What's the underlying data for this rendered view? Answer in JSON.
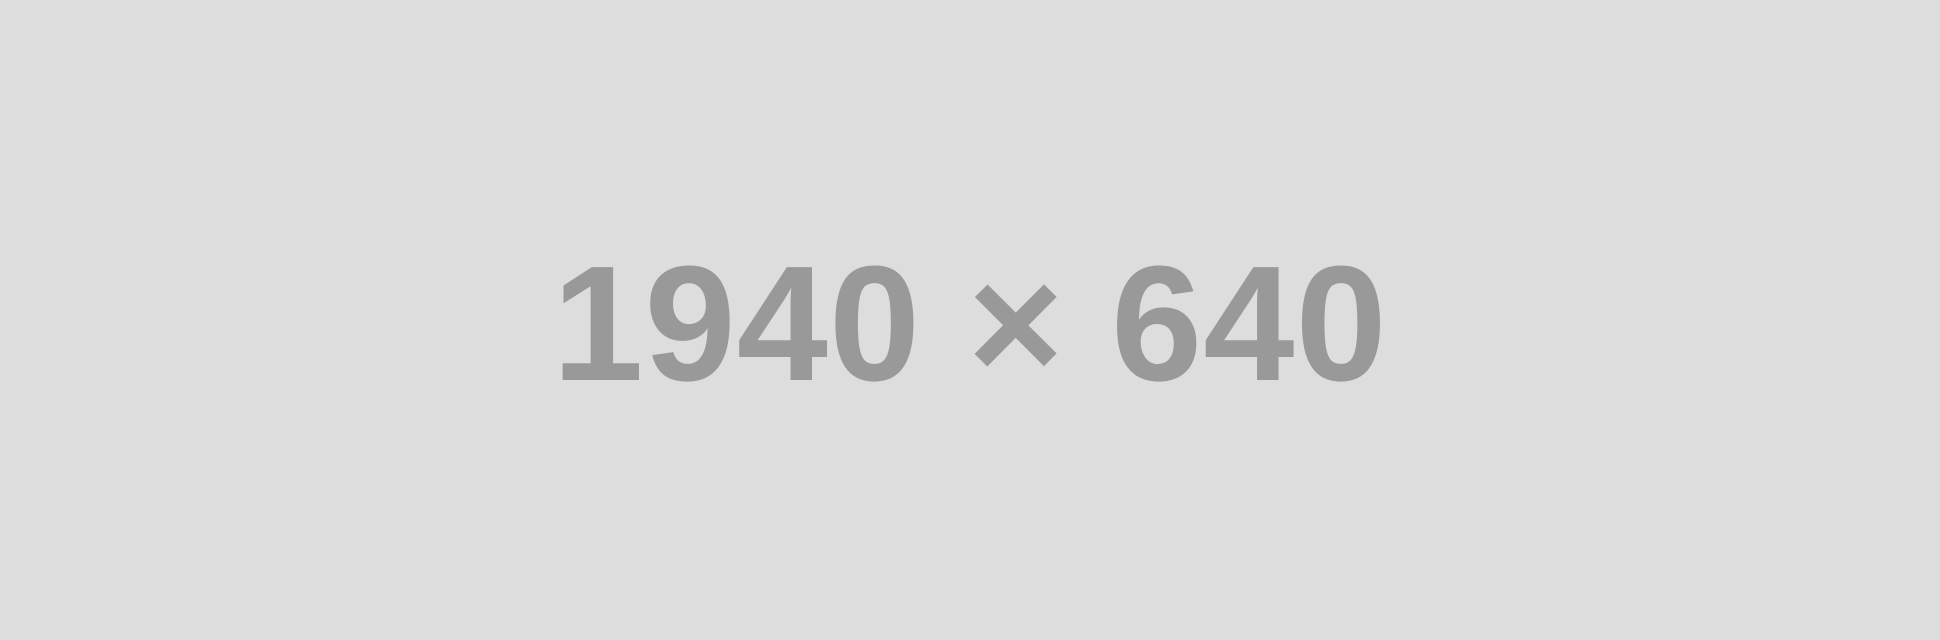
{
  "placeholder": {
    "label": "1940 × 640",
    "background_color": "#dddddd",
    "text_color": "#999999"
  }
}
